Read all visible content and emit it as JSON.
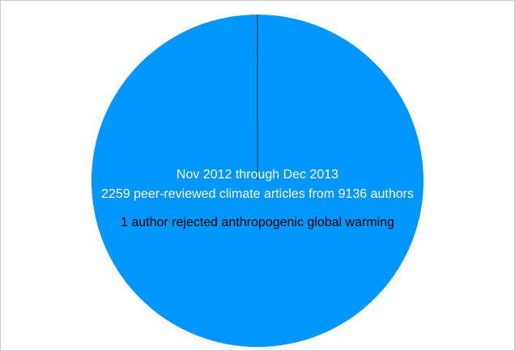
{
  "chart_data": {
    "type": "pie",
    "values": [
      9135,
      1
    ],
    "colors": [
      "#0096ff",
      "#1a1a1a"
    ],
    "annotations": [
      "Nov 2012 through Dec 2013",
      "2259 peer-reviewed climate articles from 9136 authors",
      "1 author rejected anthropogenic global warming"
    ]
  }
}
